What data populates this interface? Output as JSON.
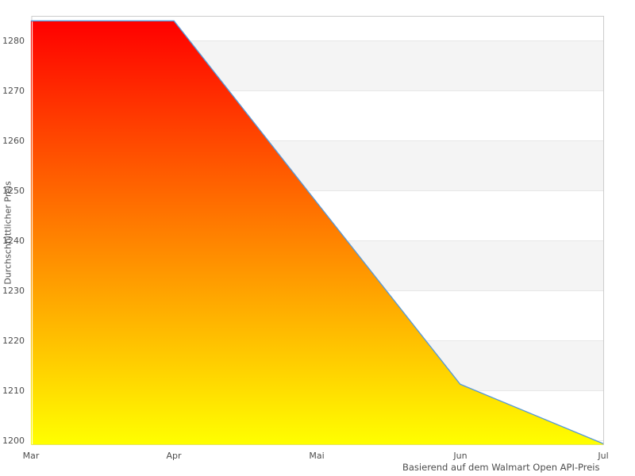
{
  "chart_data": {
    "type": "area",
    "title": "",
    "x_categories": [
      "Mar",
      "Apr",
      "Mai",
      "Jun",
      "Jul"
    ],
    "series": [
      {
        "name": "Durchschnittlicher Preis",
        "values": [
          1284,
          1284,
          1247.6,
          1211.3,
          1199.4
        ]
      }
    ],
    "ylabel": "Durchschnittlicher Preis",
    "xlabel": "Basierend auf dem Walmart Open API-Preis",
    "y_ticks": [
      1200,
      1210,
      1220,
      1230,
      1240,
      1250,
      1260,
      1270,
      1280
    ],
    "ylim": [
      1199.2,
      1284.92
    ],
    "grid": "horizontal-bands-alternating",
    "legend_position": "none"
  },
  "style": {
    "background": "#ffffff",
    "band_fill": "#f4f4f4",
    "gridline_color": "#e7e7e7",
    "frame_color": "#cccccc",
    "line_color": "#5598d8",
    "area_gradient_top": "#ff0000",
    "area_gradient_bottom": "#ffff00",
    "text_color": "#4d4d4d"
  }
}
